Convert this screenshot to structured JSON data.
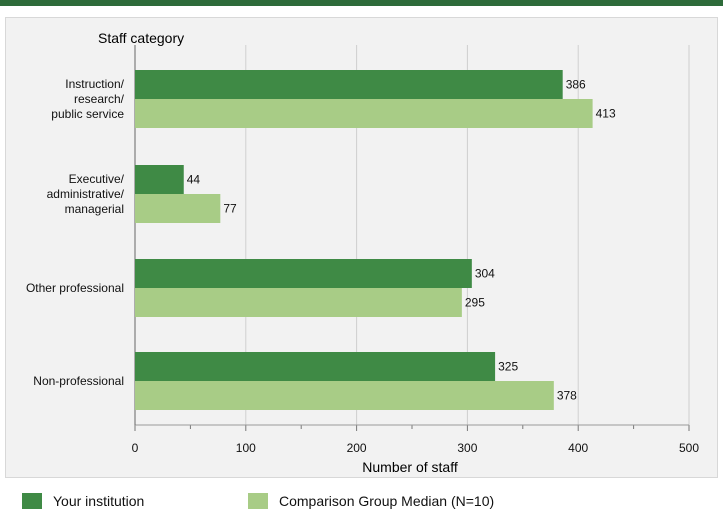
{
  "chart_data": {
    "type": "bar",
    "orientation": "horizontal",
    "title": "Staff category",
    "xlabel": "Number of staff",
    "ylabel": "",
    "xlim": [
      0,
      500
    ],
    "xticks": [
      0,
      100,
      200,
      300,
      400,
      500
    ],
    "grid": true,
    "legend_position": "bottom",
    "categories": [
      [
        "Instruction/",
        "research/",
        "public service"
      ],
      [
        "Executive/",
        "administrative/",
        "managerial"
      ],
      [
        "Other professional"
      ],
      [
        "Non-professional"
      ]
    ],
    "series": [
      {
        "name": "Your institution",
        "color": "#3f8a45",
        "values": [
          386,
          44,
          304,
          325
        ]
      },
      {
        "name": "Comparison Group Median (N=10)",
        "color": "#a8cc86",
        "values": [
          413,
          77,
          295,
          378
        ]
      }
    ]
  }
}
